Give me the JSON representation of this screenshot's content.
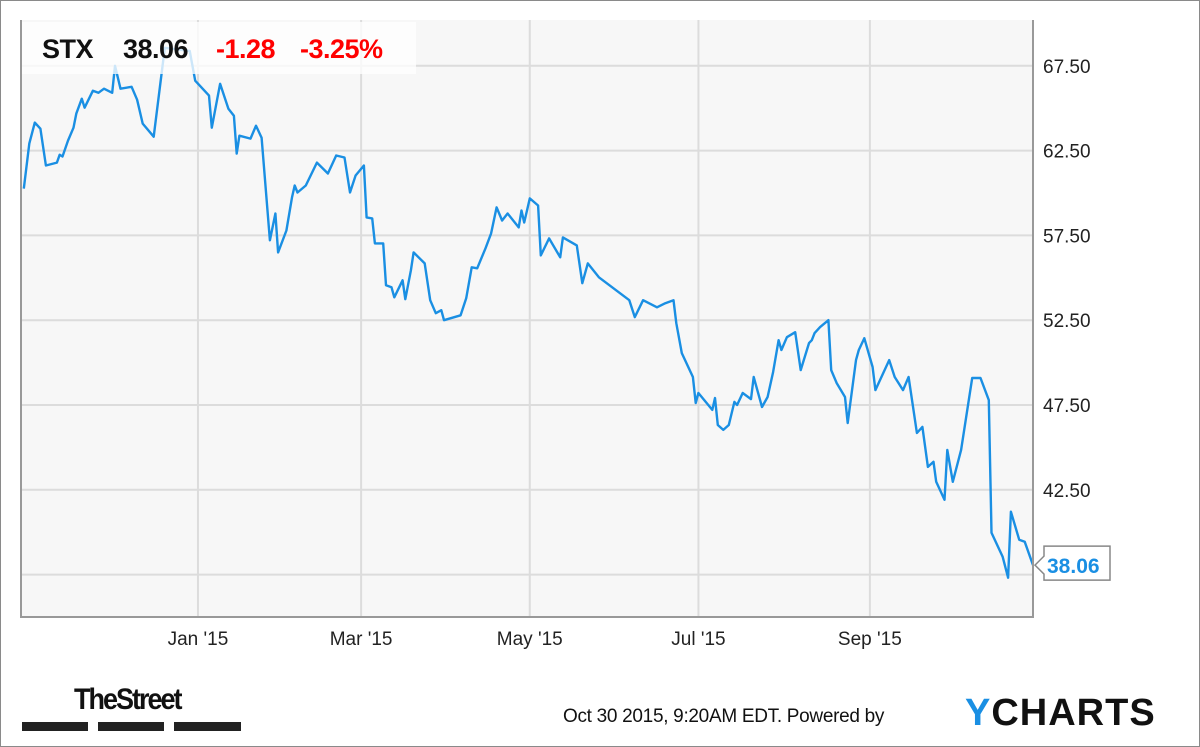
{
  "quote": {
    "symbol": "STX",
    "price": "38.06",
    "change": "-1.28",
    "change_pct": "-3.25%"
  },
  "footer": {
    "timestamp": "Oct 30 2015, 9:20AM EDT. Powered by",
    "brand_left": "TheStreet",
    "brand_right_accent": "Y",
    "brand_right_rest": "CHARTS"
  },
  "colors": {
    "line": "#1a8fe3",
    "negative": "#ff0000",
    "grid": "#dcdcdc",
    "plot_bg": "#f7f7f7"
  },
  "chart_data": {
    "type": "line",
    "title": "",
    "xlabel": "",
    "ylabel": "",
    "xlim": [
      "2014-10-29",
      "2015-10-30"
    ],
    "ylim": [
      35,
      70.2
    ],
    "grid": true,
    "y_axis_side": "right",
    "x_ticks": [
      {
        "date": "2015-01-01",
        "label": "Jan '15"
      },
      {
        "date": "2015-03-01",
        "label": "Mar '15"
      },
      {
        "date": "2015-05-01",
        "label": "May '15"
      },
      {
        "date": "2015-07-01",
        "label": "Jul '15"
      },
      {
        "date": "2015-09-01",
        "label": "Sep '15"
      }
    ],
    "y_gridlines": [
      37.5,
      42.5,
      47.5,
      52.5,
      57.5,
      62.5,
      67.5
    ],
    "y_ticks": [
      {
        "value": 42.5,
        "label": "42.50"
      },
      {
        "value": 47.5,
        "label": "47.50"
      },
      {
        "value": 52.5,
        "label": "52.50"
      },
      {
        "value": 57.5,
        "label": "57.50"
      },
      {
        "value": 62.5,
        "label": "62.50"
      },
      {
        "value": 67.5,
        "label": "67.50"
      }
    ],
    "last_value_label": "38.06",
    "series": [
      {
        "x": [
          "2014-10-30",
          "2014-11-01",
          "2014-11-03",
          "2014-11-05",
          "2014-11-07",
          "2014-11-11",
          "2014-11-12",
          "2014-11-13",
          "2014-11-15",
          "2014-11-17",
          "2014-11-18",
          "2014-11-20",
          "2014-11-21",
          "2014-11-24",
          "2014-11-26",
          "2014-11-28",
          "2014-12-01",
          "2014-12-02",
          "2014-12-04",
          "2014-12-08",
          "2014-12-10",
          "2014-12-12",
          "2014-12-16",
          "2014-12-20",
          "2014-12-29",
          "2014-12-31",
          "2015-01-05",
          "2015-01-06",
          "2015-01-09",
          "2015-01-12",
          "2015-01-14",
          "2015-01-15",
          "2015-01-16",
          "2015-01-20",
          "2015-01-22",
          "2015-01-24",
          "2015-01-27",
          "2015-01-29",
          "2015-01-30",
          "2015-02-02",
          "2015-02-04",
          "2015-02-05",
          "2015-02-06",
          "2015-02-09",
          "2015-02-13",
          "2015-02-17",
          "2015-02-20",
          "2015-02-23",
          "2015-02-25",
          "2015-02-27",
          "2015-03-02",
          "2015-03-03",
          "2015-03-05",
          "2015-03-06",
          "2015-03-09",
          "2015-03-10",
          "2015-03-12",
          "2015-03-13",
          "2015-03-16",
          "2015-03-17",
          "2015-03-19",
          "2015-03-20",
          "2015-03-24",
          "2015-03-26",
          "2015-03-28",
          "2015-03-30",
          "2015-03-31",
          "2015-04-06",
          "2015-04-08",
          "2015-04-10",
          "2015-04-12",
          "2015-04-15",
          "2015-04-17",
          "2015-04-19",
          "2015-04-21",
          "2015-04-23",
          "2015-04-27",
          "2015-04-28",
          "2015-04-29",
          "2015-05-01",
          "2015-05-04",
          "2015-05-05",
          "2015-05-08",
          "2015-05-12",
          "2015-05-13",
          "2015-05-18",
          "2015-05-20",
          "2015-05-22",
          "2015-05-26",
          "2015-06-06",
          "2015-06-08",
          "2015-06-11",
          "2015-06-16",
          "2015-06-19",
          "2015-06-22",
          "2015-06-23",
          "2015-06-25",
          "2015-06-29",
          "2015-06-30",
          "2015-07-01",
          "2015-07-06",
          "2015-07-07",
          "2015-07-08",
          "2015-07-10",
          "2015-07-12",
          "2015-07-14",
          "2015-07-15",
          "2015-07-17",
          "2015-07-20",
          "2015-07-21",
          "2015-07-24",
          "2015-07-26",
          "2015-07-28",
          "2015-07-30",
          "2015-07-31",
          "2015-08-02",
          "2015-08-05",
          "2015-08-07",
          "2015-08-10",
          "2015-08-11",
          "2015-08-12",
          "2015-08-14",
          "2015-08-17",
          "2015-08-18",
          "2015-08-20",
          "2015-08-23",
          "2015-08-24",
          "2015-08-27",
          "2015-08-28",
          "2015-08-30",
          "2015-09-02",
          "2015-09-03",
          "2015-09-08",
          "2015-09-10",
          "2015-09-13",
          "2015-09-15",
          "2015-09-18",
          "2015-09-20",
          "2015-09-22",
          "2015-09-24",
          "2015-09-25",
          "2015-09-28",
          "2015-09-29",
          "2015-10-01",
          "2015-10-04",
          "2015-10-08",
          "2015-10-11",
          "2015-10-14",
          "2015-10-15",
          "2015-10-19",
          "2015-10-21",
          "2015-10-22",
          "2015-10-25",
          "2015-10-27",
          "2015-10-30"
        ],
        "values": [
          60.26,
          62.91,
          64.15,
          63.79,
          61.62,
          61.79,
          62.26,
          62.15,
          63.09,
          63.85,
          64.68,
          65.56,
          65.03,
          66.03,
          65.91,
          66.15,
          65.91,
          67.5,
          66.15,
          66.26,
          65.5,
          64.09,
          63.32,
          68.56,
          68.38,
          66.62,
          65.74,
          63.85,
          66.44,
          64.97,
          64.56,
          62.32,
          63.38,
          63.21,
          63.97,
          63.26,
          57.21,
          58.79,
          56.5,
          57.79,
          59.74,
          60.44,
          60.03,
          60.44,
          61.79,
          61.15,
          62.21,
          62.09,
          60.03,
          61.03,
          61.62,
          58.56,
          58.5,
          57.03,
          57.03,
          54.56,
          54.44,
          53.85,
          54.85,
          53.74,
          55.44,
          56.5,
          55.85,
          53.68,
          52.91,
          53.09,
          52.5,
          52.79,
          53.79,
          55.62,
          55.56,
          56.74,
          57.62,
          59.15,
          58.38,
          58.79,
          57.97,
          58.97,
          58.26,
          59.68,
          59.26,
          56.32,
          57.32,
          56.21,
          57.38,
          56.91,
          54.68,
          55.85,
          55.03,
          53.68,
          52.68,
          53.68,
          53.26,
          53.5,
          53.68,
          52.32,
          50.56,
          49.15,
          47.62,
          48.21,
          47.21,
          47.91,
          46.32,
          46.03,
          46.32,
          47.68,
          47.5,
          48.21,
          47.85,
          49.15,
          47.38,
          47.97,
          49.44,
          51.32,
          50.74,
          51.5,
          51.79,
          49.56,
          51.15,
          51.32,
          51.74,
          52.09,
          52.5,
          49.56,
          48.79,
          47.97,
          46.44,
          50.15,
          50.74,
          51.44,
          49.74,
          48.38,
          50.15,
          49.15,
          48.38,
          49.15,
          45.85,
          46.21,
          43.85,
          44.15,
          42.97,
          41.91,
          44.85,
          42.97,
          44.85,
          49.09,
          49.09,
          47.79,
          39.97,
          38.56,
          37.32,
          41.21,
          39.56,
          39.44,
          38.06
        ]
      }
    ]
  }
}
